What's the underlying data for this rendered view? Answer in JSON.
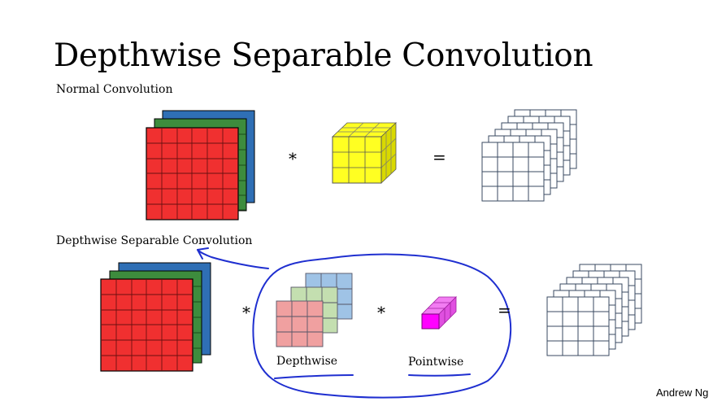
{
  "title": "Depthwise Separable Convolution",
  "normal_label": "Normal Convolution",
  "dsc_label": "Depthwise Separable Convolution",
  "operators": {
    "multiply": "*",
    "equals": "="
  },
  "depthwise_label": "Depthwise",
  "pointwise_label": "Pointwise",
  "author": "Andrew Ng",
  "colors": {
    "red": "#f03030",
    "green": "#3d8c3d",
    "blue": "#2f6fb5",
    "yellow": "#ffff22",
    "pink": "#f0a0a0",
    "light_green": "#c4dfb0",
    "light_blue": "#9fc3e6",
    "magenta": "#ff00ff",
    "ink": "#1f2fd0"
  }
}
